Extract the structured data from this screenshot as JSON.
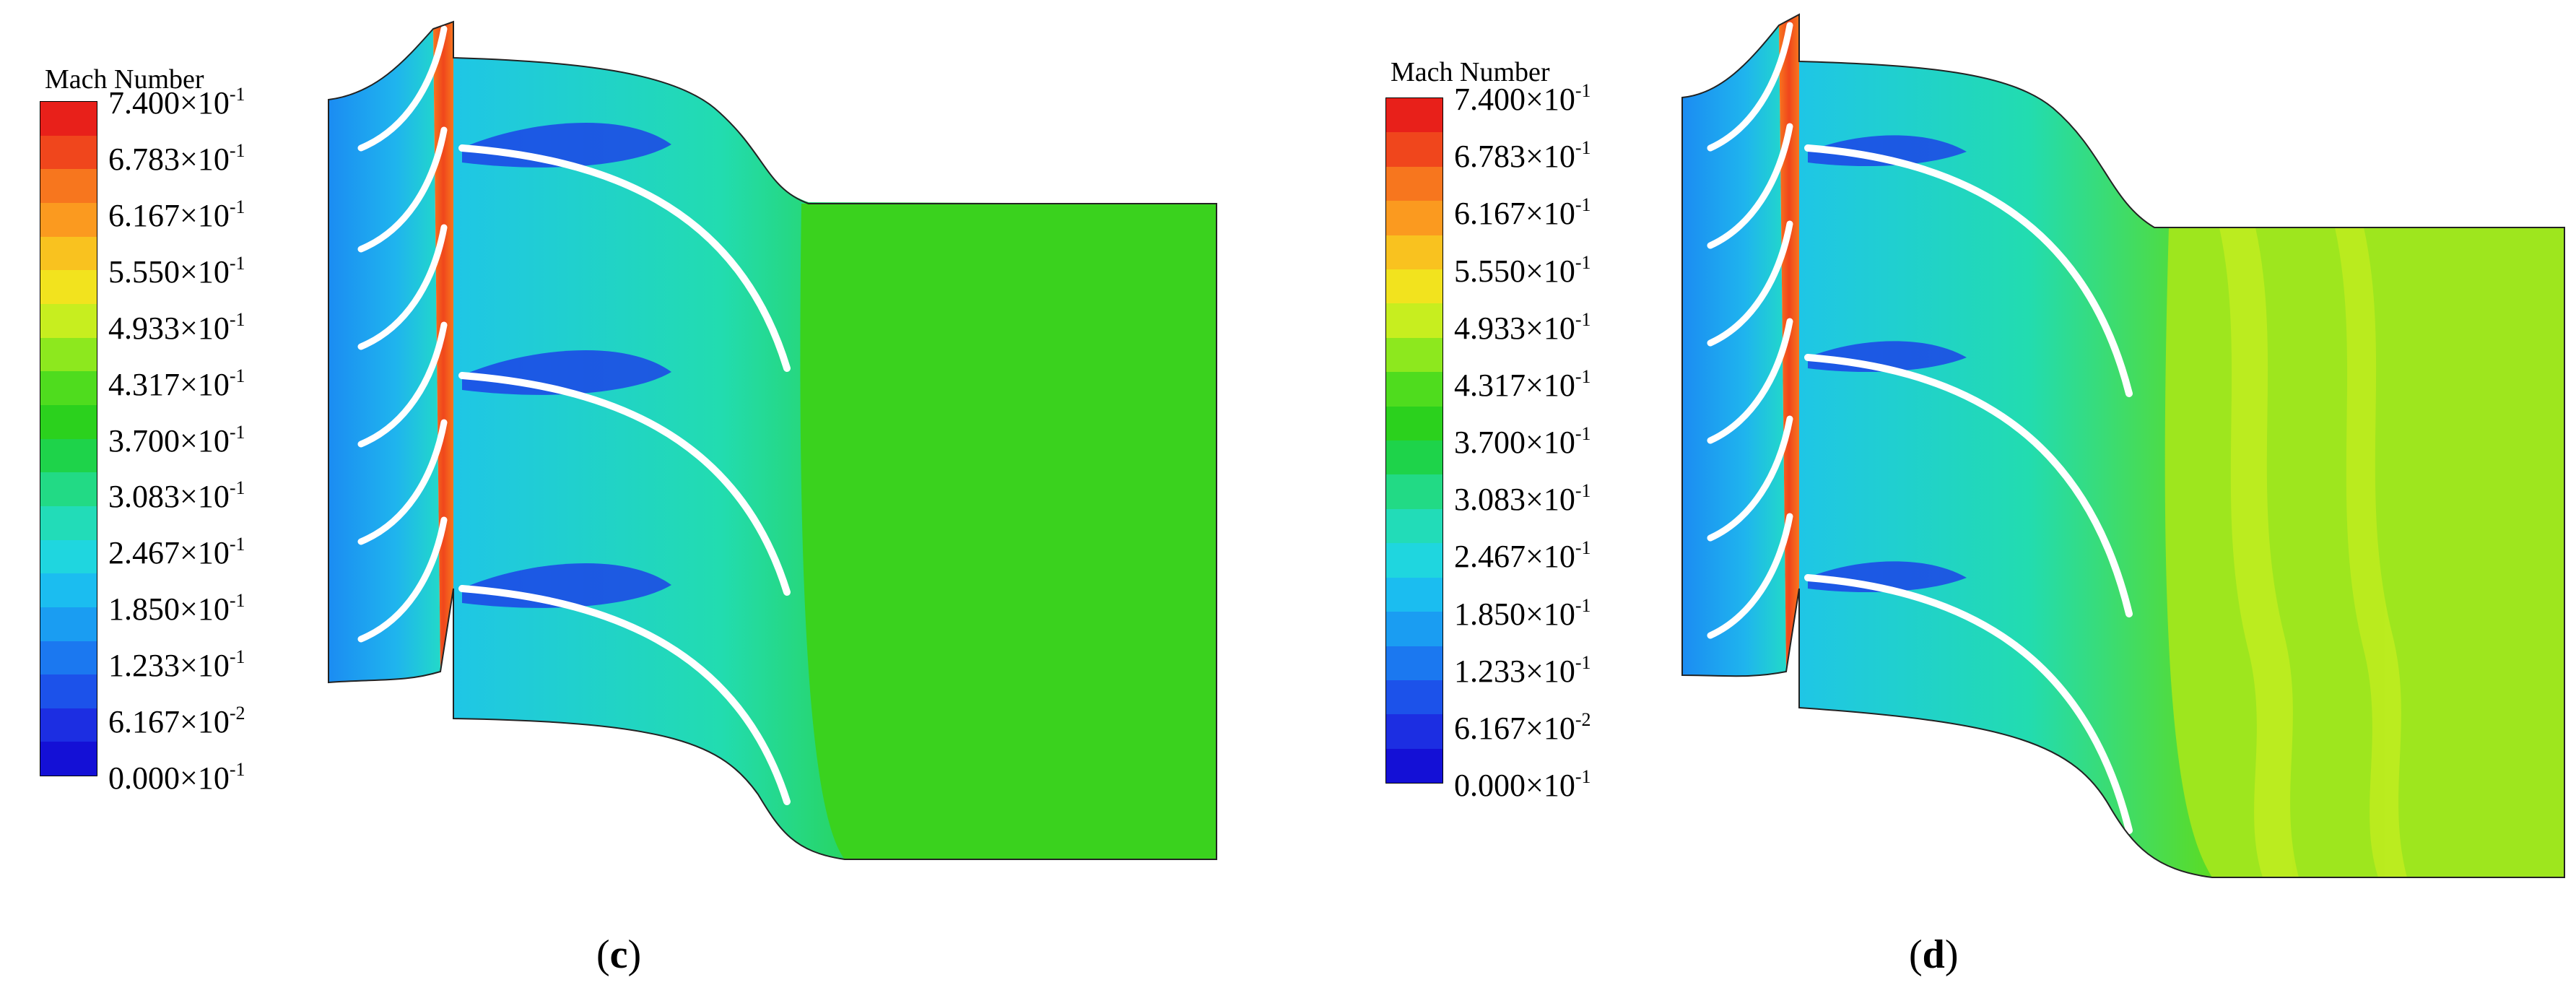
{
  "panels": [
    {
      "id": "c",
      "caption_open": "(",
      "caption_letter": "c",
      "caption_close": ")",
      "colorbar_title": "Mach Number",
      "ticks": [
        {
          "mantissa": "7.400×10",
          "exp": "-1"
        },
        {
          "mantissa": "6.783×10",
          "exp": "-1"
        },
        {
          "mantissa": "6.167×10",
          "exp": "-1"
        },
        {
          "mantissa": "5.550×10",
          "exp": "-1"
        },
        {
          "mantissa": "4.933×10",
          "exp": "-1"
        },
        {
          "mantissa": "4.317×10",
          "exp": "-1"
        },
        {
          "mantissa": "3.700×10",
          "exp": "-1"
        },
        {
          "mantissa": "3.083×10",
          "exp": "-1"
        },
        {
          "mantissa": "2.467×10",
          "exp": "-1"
        },
        {
          "mantissa": "1.850×10",
          "exp": "-1"
        },
        {
          "mantissa": "1.233×10",
          "exp": "-1"
        },
        {
          "mantissa": "6.167×10",
          "exp": "-2"
        },
        {
          "mantissa": "0.000×10",
          "exp": "-1"
        }
      ]
    },
    {
      "id": "d",
      "caption_open": "(",
      "caption_letter": "d",
      "caption_close": ")",
      "colorbar_title": "Mach Number",
      "ticks": [
        {
          "mantissa": "7.400×10",
          "exp": "-1"
        },
        {
          "mantissa": "6.783×10",
          "exp": "-1"
        },
        {
          "mantissa": "6.167×10",
          "exp": "-1"
        },
        {
          "mantissa": "5.550×10",
          "exp": "-1"
        },
        {
          "mantissa": "4.933×10",
          "exp": "-1"
        },
        {
          "mantissa": "4.317×10",
          "exp": "-1"
        },
        {
          "mantissa": "3.700×10",
          "exp": "-1"
        },
        {
          "mantissa": "3.083×10",
          "exp": "-1"
        },
        {
          "mantissa": "2.467×10",
          "exp": "-1"
        },
        {
          "mantissa": "1.850×10",
          "exp": "-1"
        },
        {
          "mantissa": "1.233×10",
          "exp": "-1"
        },
        {
          "mantissa": "6.167×10",
          "exp": "-2"
        },
        {
          "mantissa": "0.000×10",
          "exp": "-1"
        }
      ]
    }
  ],
  "colors": {
    "scale": [
      "#e8201a",
      "#f0461c",
      "#f7761e",
      "#fb9a1f",
      "#f9c21f",
      "#f2e31e",
      "#c7ee1f",
      "#8de81e",
      "#4fdc1e",
      "#2bd11d",
      "#1ed34a",
      "#22da85",
      "#22dcb8",
      "#1fd6df",
      "#1bbdf0",
      "#1a9df2",
      "#1b78f0",
      "#1c52ea",
      "#1c2ee2",
      "#1410d6"
    ],
    "background": "#ffffff"
  }
}
